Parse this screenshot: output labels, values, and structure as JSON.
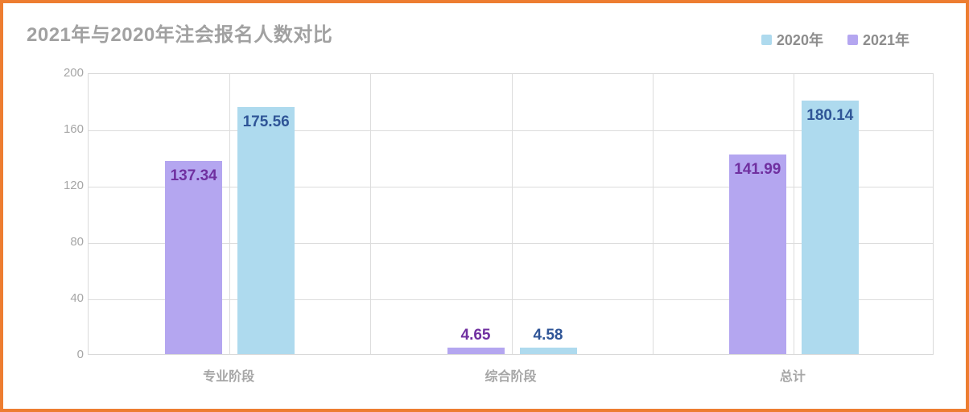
{
  "card": {
    "border_color": "#ed7d31",
    "background": "#ffffff"
  },
  "header": {
    "title": "2021年与2020年注会报名人数对比"
  },
  "legend": [
    {
      "key": "2020",
      "label": "2020年",
      "color": "#aedaee"
    },
    {
      "key": "2021",
      "label": "2021年",
      "color": "#b4a6f0"
    }
  ],
  "chart_data": {
    "type": "bar",
    "title": "2021年与2020年注会报名人数对比",
    "categories": [
      "专业阶段",
      "综合阶段",
      "总计"
    ],
    "series": [
      {
        "key": "2021",
        "name": "2021年",
        "color": "#b4a6f0",
        "label_color": "#7030a0",
        "values": [
          137.34,
          4.65,
          141.99
        ]
      },
      {
        "key": "2020",
        "name": "2020年",
        "color": "#aedaee",
        "label_color": "#2f5597",
        "values": [
          175.56,
          4.58,
          180.14
        ]
      }
    ],
    "ylim": [
      0,
      200
    ],
    "yticks": [
      0,
      40,
      80,
      120,
      160,
      200
    ],
    "grid": true,
    "legend_position": "top-right",
    "bar_order_note": "within each category group the 2021 (purple) bar is drawn left of the 2020 (blue) bar",
    "label_position": "inside-top (above bar when bar is too short)"
  }
}
